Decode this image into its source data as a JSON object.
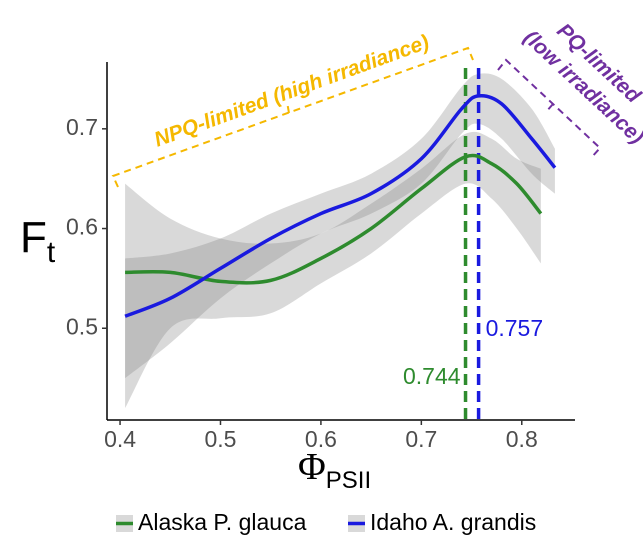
{
  "chart_data": {
    "type": "line",
    "x_label": {
      "main": "Φ",
      "sub": "PSII"
    },
    "y_label": {
      "main": "F",
      "sub": "t"
    },
    "xlim": [
      0.387,
      0.853
    ],
    "ylim": [
      0.408,
      0.767
    ],
    "xticks": [
      0.4,
      0.5,
      0.6,
      0.7,
      0.8
    ],
    "yticks": [
      0.5,
      0.6,
      0.7
    ],
    "band_color": "#808080",
    "series": [
      {
        "name": "Alaska P. glauca",
        "color": "#2e8b2e",
        "x": [
          0.405,
          0.45,
          0.5,
          0.55,
          0.6,
          0.65,
          0.7,
          0.744,
          0.77,
          0.795,
          0.819
        ],
        "values": [
          0.556,
          0.556,
          0.547,
          0.548,
          0.57,
          0.6,
          0.64,
          0.672,
          0.665,
          0.645,
          0.615
        ],
        "upper": [
          0.645,
          0.61,
          0.59,
          0.585,
          0.595,
          0.625,
          0.66,
          0.695,
          0.69,
          0.67,
          0.66
        ],
        "lower": [
          0.42,
          0.5,
          0.51,
          0.515,
          0.545,
          0.575,
          0.615,
          0.645,
          0.63,
          0.6,
          0.565
        ]
      },
      {
        "name": "Idaho A. grandis",
        "color": "#1a1adf",
        "x": [
          0.405,
          0.45,
          0.5,
          0.55,
          0.6,
          0.65,
          0.7,
          0.74,
          0.757,
          0.78,
          0.81,
          0.833
        ],
        "values": [
          0.512,
          0.53,
          0.56,
          0.59,
          0.615,
          0.635,
          0.67,
          0.72,
          0.733,
          0.725,
          0.69,
          0.661
        ],
        "upper": [
          0.57,
          0.575,
          0.59,
          0.615,
          0.635,
          0.655,
          0.69,
          0.742,
          0.755,
          0.75,
          0.72,
          0.68
        ],
        "lower": [
          0.45,
          0.485,
          0.53,
          0.565,
          0.595,
          0.615,
          0.645,
          0.695,
          0.705,
          0.69,
          0.655,
          0.635
        ]
      }
    ],
    "vlines": [
      {
        "value": 0.744,
        "color": "#2e8b2e"
      },
      {
        "value": 0.757,
        "color": "#1a1adf"
      }
    ],
    "annotations": {
      "npq": {
        "text": "NPQ-limited (high irradiance)",
        "color": "#f5b800"
      },
      "pq": {
        "lines": [
          "PQ-limited",
          "(low irradiance)"
        ],
        "color": "#7030a0"
      }
    }
  }
}
